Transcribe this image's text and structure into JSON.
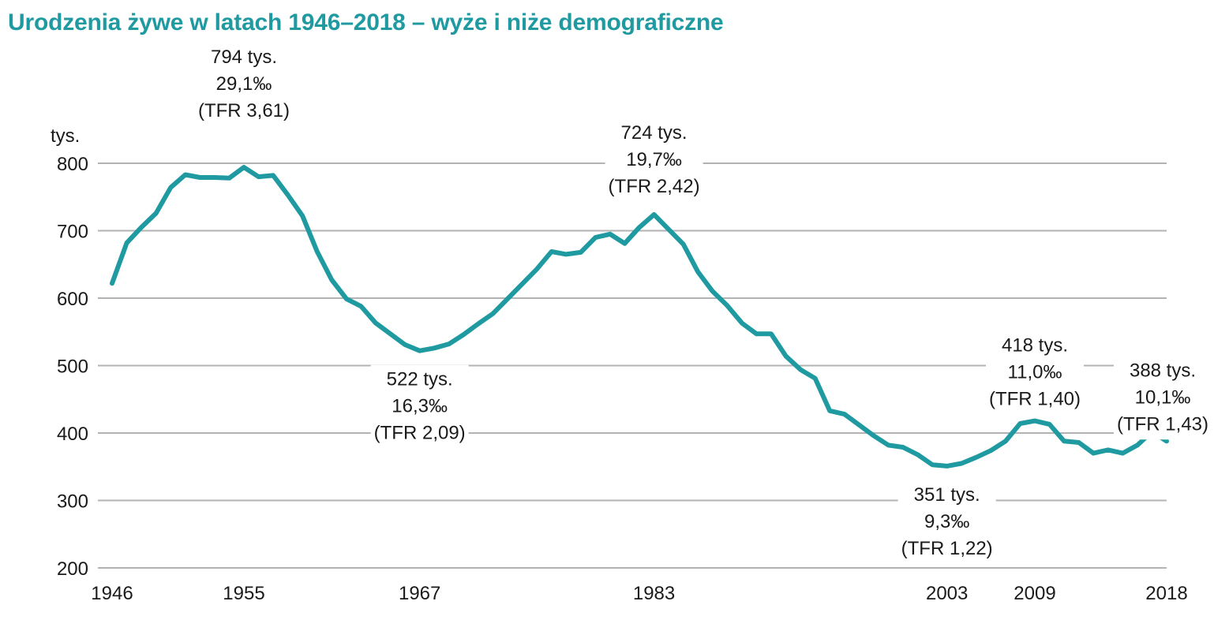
{
  "title": "Urodzenia żywe w latach 1946–2018 – wyże i niże demograficzne",
  "colors": {
    "line": "#1f9aa1",
    "title": "#1f9aa1",
    "grid": "#b3b3b3"
  },
  "chart_data": {
    "type": "line",
    "title": "Urodzenia żywe w latach 1946–2018 – wyże i niże demograficzne",
    "ylabel": "tys.",
    "xlabel": "",
    "ylim": [
      200,
      800
    ],
    "xlim": [
      1946,
      2018
    ],
    "grid": true,
    "x_ticks": [
      "1946",
      "1955",
      "1967",
      "1983",
      "2003",
      "2009",
      "2018"
    ],
    "y_ticks": [
      "800",
      "700",
      "600",
      "500",
      "400",
      "300",
      "200"
    ],
    "series": [
      {
        "x": [
          1946,
          1947,
          1948,
          1949,
          1950,
          1951,
          1952,
          1953,
          1954,
          1955,
          1956,
          1957,
          1958,
          1959,
          1960,
          1961,
          1962,
          1963,
          1964,
          1965,
          1966,
          1967,
          1968,
          1969,
          1970,
          1971,
          1972,
          1973,
          1974,
          1975,
          1976,
          1977,
          1978,
          1979,
          1980,
          1981,
          1982,
          1983,
          1984,
          1985,
          1986,
          1987,
          1988,
          1989,
          1990,
          1991,
          1992,
          1993,
          1994,
          1995,
          1996,
          1997,
          1998,
          1999,
          2000,
          2001,
          2002,
          2003,
          2004,
          2005,
          2006,
          2007,
          2008,
          2009,
          2010,
          2011,
          2012,
          2013,
          2014,
          2015,
          2016,
          2017,
          2018
        ],
        "values": [
          622,
          682,
          705,
          726,
          764,
          783,
          779,
          779,
          778,
          794,
          780,
          782,
          753,
          722,
          669,
          627,
          599,
          588,
          563,
          547,
          531,
          522,
          526,
          532,
          546,
          562,
          577,
          599,
          621,
          643,
          669,
          665,
          668,
          690,
          695,
          681,
          705,
          724,
          702,
          680,
          639,
          610,
          589,
          563,
          547,
          547,
          514,
          494,
          481,
          433,
          428,
          412,
          396,
          382,
          379,
          368,
          353,
          351,
          355,
          364,
          374,
          388,
          414,
          418,
          413,
          388,
          386,
          370,
          375,
          370,
          382,
          402,
          388
        ]
      }
    ],
    "annotations": [
      {
        "year": 1955,
        "lines": [
          "794 tys.",
          "29,1‰",
          "(TFR 3,61)"
        ]
      },
      {
        "year": 1967,
        "lines": [
          "522 tys.",
          "16,3‰",
          "(TFR 2,09)"
        ]
      },
      {
        "year": 1983,
        "lines": [
          "724 tys.",
          "19,7‰",
          "(TFR 2,42)"
        ]
      },
      {
        "year": 2003,
        "lines": [
          "351 tys.",
          "9,3‰",
          "(TFR 1,22)"
        ]
      },
      {
        "year": 2009,
        "lines": [
          "418 tys.",
          "11,0‰",
          "(TFR 1,40)"
        ]
      },
      {
        "year": 2018,
        "lines": [
          "388 tys.",
          "10,1‰",
          "(TFR 1,43)"
        ]
      }
    ]
  }
}
